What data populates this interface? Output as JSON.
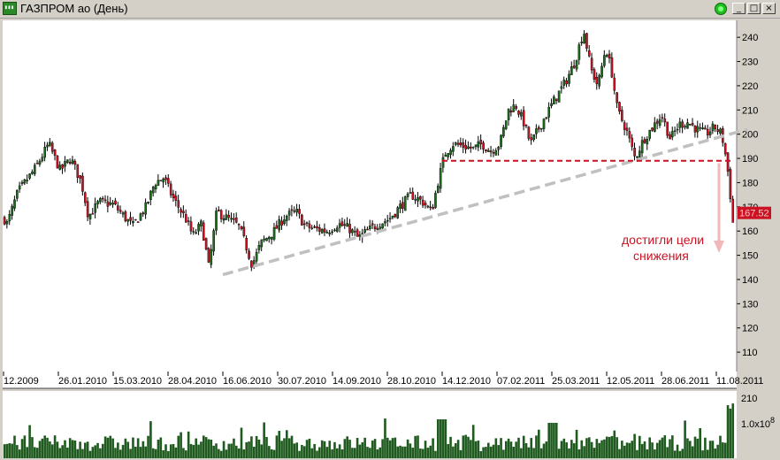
{
  "window": {
    "title": "ГАЗПРОМ ао (День)",
    "icon": "chart-app-icon",
    "buttons": {
      "minimize": "_",
      "maximize": "□",
      "close": "×"
    }
  },
  "colors": {
    "background": "#ffffff",
    "up_candle": "#1e6b1e",
    "down_candle": "#cc1122",
    "wick": "#000000",
    "volume": "#1f5a1f",
    "trendline": "#c0c0c0",
    "support_line": "#cc1122",
    "arrow": "#f0b8b8",
    "price_badge": "#cc1122",
    "annotation": "#cc1122"
  },
  "chart_data": [
    {
      "type": "candlestick",
      "title": "ГАЗПРОМ ао (День)",
      "x_tick_labels": [
        "12.2009",
        "26.01.2010",
        "15.03.2010",
        "28.04.2010",
        "16.06.2010",
        "30.07.2010",
        "14.09.2010",
        "28.10.2010",
        "14.12.2010",
        "07.02.2011",
        "25.03.2011",
        "12.05.2011",
        "28.06.2011",
        "11.08.2011"
      ],
      "y_ticks": [
        110,
        120,
        130,
        140,
        150,
        160,
        170,
        180,
        190,
        200,
        210,
        220,
        230,
        240
      ],
      "ylim": [
        102,
        247
      ],
      "last_price_label": "167.52",
      "series": [
        {
          "x": [
            "12.2009",
            "26.01.2010",
            "15.03.2010",
            "28.04.2010",
            "16.06.2010",
            "30.07.2010",
            "14.09.2010",
            "28.10.2010",
            "14.12.2010",
            "07.02.2011",
            "25.03.2011",
            "12.05.2011",
            "28.06.2011",
            "11.08.2011"
          ],
          "close_approx": [
            168,
            190,
            166,
            160,
            146,
            167,
            160,
            170,
            194,
            208,
            236,
            195,
            200,
            158
          ]
        }
      ],
      "anchors": [
        [
          0,
          168
        ],
        [
          8,
          163
        ],
        [
          20,
          176
        ],
        [
          40,
          186
        ],
        [
          55,
          196
        ],
        [
          68,
          185
        ],
        [
          80,
          190
        ],
        [
          92,
          180
        ],
        [
          100,
          166
        ],
        [
          112,
          172
        ],
        [
          128,
          171
        ],
        [
          150,
          162
        ],
        [
          165,
          170
        ],
        [
          175,
          180
        ],
        [
          185,
          182
        ],
        [
          195,
          174
        ],
        [
          210,
          165
        ],
        [
          218,
          158
        ],
        [
          228,
          163
        ],
        [
          236,
          145
        ],
        [
          245,
          168
        ],
        [
          258,
          165
        ],
        [
          270,
          162
        ],
        [
          278,
          154
        ],
        [
          285,
          146
        ],
        [
          295,
          155
        ],
        [
          310,
          160
        ],
        [
          322,
          166
        ],
        [
          335,
          168
        ],
        [
          345,
          162
        ],
        [
          355,
          161
        ],
        [
          370,
          160
        ],
        [
          382,
          163
        ],
        [
          395,
          161
        ],
        [
          405,
          157
        ],
        [
          415,
          160
        ],
        [
          428,
          163
        ],
        [
          440,
          165
        ],
        [
          452,
          170
        ],
        [
          465,
          175
        ],
        [
          478,
          172
        ],
        [
          488,
          168
        ],
        [
          495,
          180
        ],
        [
          503,
          192
        ],
        [
          512,
          196
        ],
        [
          525,
          195
        ],
        [
          535,
          194
        ],
        [
          545,
          196
        ],
        [
          555,
          193
        ],
        [
          565,
          196
        ],
        [
          575,
          210
        ],
        [
          583,
          212
        ],
        [
          592,
          205
        ],
        [
          600,
          196
        ],
        [
          610,
          203
        ],
        [
          625,
          213
        ],
        [
          640,
          222
        ],
        [
          650,
          230
        ],
        [
          660,
          243
        ],
        [
          668,
          227
        ],
        [
          676,
          220
        ],
        [
          685,
          236
        ],
        [
          692,
          225
        ],
        [
          698,
          210
        ],
        [
          708,
          202
        ],
        [
          718,
          190
        ],
        [
          728,
          198
        ],
        [
          738,
          203
        ],
        [
          748,
          208
        ],
        [
          758,
          198
        ],
        [
          768,
          204
        ],
        [
          778,
          205
        ],
        [
          788,
          202
        ],
        [
          798,
          200
        ],
        [
          808,
          203
        ],
        [
          816,
          200
        ],
        [
          822,
          188
        ],
        [
          826,
          174
        ],
        [
          830,
          158
        ],
        [
          833,
          167.5
        ]
      ]
    },
    {
      "type": "bar",
      "title": "volume",
      "y_tick_labels": [
        "210"
      ],
      "scale_label": "1.0x10",
      "scale_exponent": "8"
    }
  ],
  "annotations": {
    "text_line1": "достигли цели",
    "text_line2": "снижения",
    "trendline": {
      "from": {
        "x": "16.06.2010",
        "y": 142
      },
      "to": {
        "x": "11.08.2011",
        "y": 202
      }
    },
    "support_line": {
      "from": {
        "x": "14.12.2010",
        "y": 189
      },
      "to": {
        "x": "11.08.2011",
        "y": 189
      }
    },
    "target_arrow": {
      "from": {
        "x": "11.08.2011",
        "y": 188
      },
      "to": {
        "x": "11.08.2011",
        "y": 151
      }
    }
  }
}
